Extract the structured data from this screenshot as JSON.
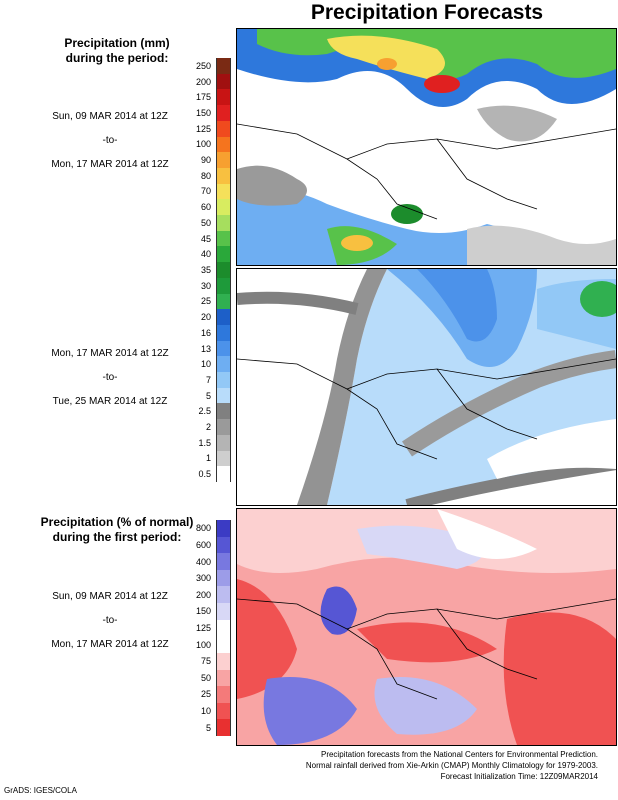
{
  "title": "Precipitation Forecasts",
  "panel1": {
    "heading_line1": "Precipitation (mm)",
    "heading_line2": "during the period:",
    "start": "Sun, 09 MAR 2014 at 12Z",
    "to": "-to-",
    "end": "Mon, 17 MAR 2014 at 12Z"
  },
  "panel2": {
    "start": "Mon, 17 MAR 2014 at 12Z",
    "to": "-to-",
    "end": "Tue, 25 MAR 2014 at 12Z"
  },
  "panel3": {
    "heading_line1": "Precipitation (% of normal)",
    "heading_line2": "during the first period:",
    "start": "Sun, 09 MAR 2014 at 12Z",
    "to": "-to-",
    "end": "Mon, 17 MAR 2014 at 12Z"
  },
  "mm_scale": {
    "labels": [
      "250",
      "200",
      "175",
      "150",
      "125",
      "100",
      "90",
      "80",
      "70",
      "60",
      "50",
      "45",
      "40",
      "35",
      "30",
      "25",
      "20",
      "16",
      "13",
      "10",
      "7",
      "5",
      "2.5",
      "2",
      "1.5",
      "1",
      "0.5"
    ],
    "colors": [
      "#7a2a14",
      "#a01010",
      "#c81414",
      "#e02020",
      "#f04a1e",
      "#f5741e",
      "#f7a030",
      "#f8c040",
      "#f5e05a",
      "#d8ec60",
      "#a6de5e",
      "#58c24a",
      "#2aa83a",
      "#1c8c2c",
      "#1e9a3a",
      "#30b050",
      "#1d5fc8",
      "#2e78dc",
      "#4c92ea",
      "#6eaef2",
      "#92c8f6",
      "#b8dcfa",
      "#808080",
      "#9a9a9a",
      "#b4b4b4",
      "#cecece",
      "#ffffff"
    ]
  },
  "pct_scale": {
    "labels": [
      "800",
      "600",
      "400",
      "300",
      "200",
      "150",
      "125",
      "100",
      "75",
      "50",
      "25",
      "10",
      "5"
    ],
    "colors": [
      "#3b3bc4",
      "#5656d4",
      "#7878e0",
      "#9c9ce8",
      "#bcbcf0",
      "#d8d8f6",
      "#ffffff",
      "#ffffff",
      "#fcd0d0",
      "#f8a4a4",
      "#f47a7a",
      "#f05252",
      "#e83030"
    ]
  },
  "footer": {
    "line1": "Precipitation forecasts from the National Centers for Environmental Prediction.",
    "line2": "Normal rainfall derived from Xie-Arkin (CMAP) Monthly Climatology for 1979-2003.",
    "line3": "Forecast Initialization Time: 12Z09MAR2014"
  },
  "credit": "GrADS: IGES/COLA"
}
